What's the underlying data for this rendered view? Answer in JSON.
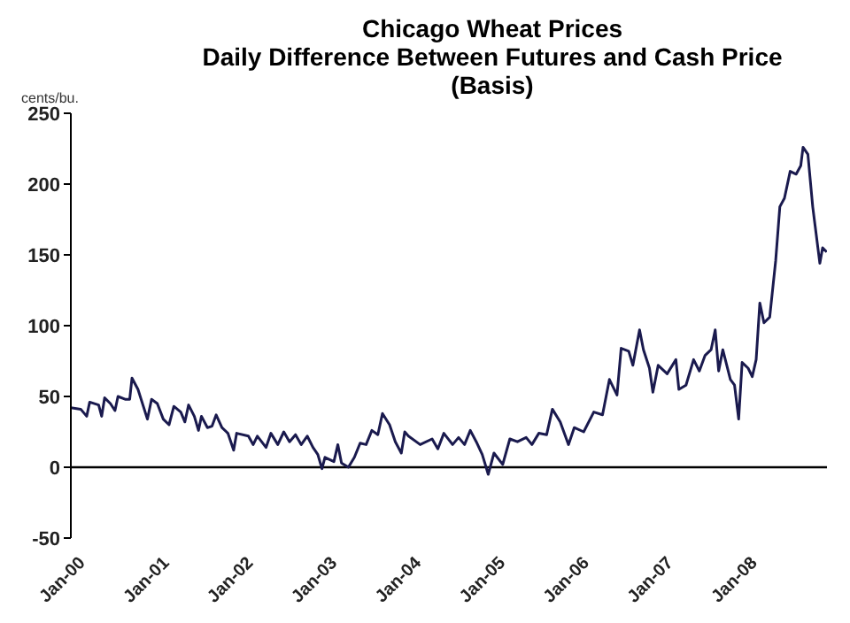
{
  "chart_data": {
    "type": "line",
    "title": "Chicago Wheat Prices",
    "subtitle": "Daily Difference Between Futures and Cash Price (Basis)",
    "ylabel": "cents/bu.",
    "x": [
      "2000-01-01",
      "2000-02-13",
      "2000-03-10",
      "2000-03-23",
      "2000-05-01",
      "2000-05-14",
      "2000-05-27",
      "2000-06-21",
      "2000-07-11",
      "2000-07-24",
      "2000-08-24",
      "2000-09-13",
      "2000-09-23",
      "2000-10-19",
      "2000-11-29",
      "2000-12-17",
      "2001-01-11",
      "2001-02-06",
      "2001-03-03",
      "2001-03-24",
      "2001-04-23",
      "2001-05-11",
      "2001-05-27",
      "2001-06-21",
      "2001-07-09",
      "2001-07-22",
      "2001-08-17",
      "2001-09-06",
      "2001-09-24",
      "2001-10-19",
      "2001-11-14",
      "2001-12-09",
      "2001-12-22",
      "2002-02-11",
      "2002-03-04",
      "2002-03-22",
      "2002-04-29",
      "2002-05-20",
      "2002-06-19",
      "2002-07-15",
      "2002-08-09",
      "2002-09-04",
      "2002-09-29",
      "2002-10-25",
      "2002-11-19",
      "2002-12-10",
      "2002-12-28",
      "2003-01-10",
      "2003-02-18",
      "2003-03-07",
      "2003-03-23",
      "2003-04-22",
      "2003-05-18",
      "2003-06-12",
      "2003-07-08",
      "2003-08-02",
      "2003-08-28",
      "2003-09-17",
      "2003-10-18",
      "2003-11-12",
      "2003-12-08",
      "2003-12-23",
      "2004-01-08",
      "2004-02-28",
      "2004-04-20",
      "2004-05-15",
      "2004-06-10",
      "2004-07-18",
      "2004-08-13",
      "2004-09-08",
      "2004-10-03",
      "2004-10-29",
      "2004-11-24",
      "2004-12-20",
      "2005-01-14",
      "2005-02-21",
      "2005-03-24",
      "2005-04-26",
      "2005-06-03",
      "2005-06-28",
      "2005-07-28",
      "2005-08-31",
      "2005-09-25",
      "2005-10-29",
      "2005-12-04",
      "2005-12-29",
      "2006-02-08",
      "2006-03-24",
      "2006-05-01",
      "2006-05-31",
      "2006-07-03",
      "2006-07-21",
      "2006-08-23",
      "2006-09-10",
      "2006-10-09",
      "2006-10-26",
      "2006-11-21",
      "2006-12-06",
      "2006-12-29",
      "2007-02-06",
      "2007-03-16",
      "2007-03-29",
      "2007-04-29",
      "2007-06-01",
      "2007-06-26",
      "2007-07-21",
      "2007-08-16",
      "2007-09-03",
      "2007-09-18",
      "2007-10-06",
      "2007-11-08",
      "2007-11-26",
      "2007-12-14",
      "2007-12-29",
      "2008-01-24",
      "2008-02-11",
      "2008-02-28",
      "2008-03-15",
      "2008-04-02",
      "2008-04-27",
      "2008-05-23",
      "2008-06-10",
      "2008-06-30",
      "2008-07-25",
      "2008-08-20",
      "2008-09-09",
      "2008-09-19",
      "2008-10-10",
      "2008-10-31",
      "2008-12-01",
      "2008-12-13",
      "2008-12-31"
    ],
    "series": [
      {
        "color": "#1a1a4e",
        "values": [
          42,
          41,
          36,
          46,
          44,
          36,
          49,
          45,
          40,
          50,
          48,
          48,
          63,
          55,
          34,
          48,
          45,
          34,
          30,
          43,
          39,
          32,
          44,
          36,
          26,
          36,
          28,
          29,
          37,
          28,
          24,
          12,
          24,
          22,
          16,
          22,
          14,
          24,
          16,
          25,
          18,
          23,
          16,
          22,
          14,
          9,
          -1,
          7,
          4,
          16,
          3,
          0,
          7,
          17,
          16,
          26,
          23,
          38,
          30,
          18,
          10,
          25,
          22,
          16,
          20,
          13,
          24,
          16,
          21,
          16,
          26,
          18,
          9,
          -5,
          10,
          2,
          20,
          18,
          21,
          16,
          24,
          23,
          41,
          32,
          16,
          28,
          25,
          39,
          37,
          62,
          51,
          84,
          82,
          72,
          97,
          83,
          70,
          53,
          72,
          66,
          76,
          55,
          58,
          76,
          68,
          79,
          83,
          97,
          68,
          83,
          62,
          58,
          34,
          74,
          70,
          64,
          76,
          116,
          102,
          106,
          146,
          184,
          190,
          209,
          207,
          213,
          226,
          221,
          184,
          144,
          155,
          152
        ]
      }
    ],
    "xlim": [
      "2000-01-01",
      "2009-01-01"
    ],
    "xticks": [
      {
        "value": "2000-01-01",
        "label": "Jan-00"
      },
      {
        "value": "2001-01-01",
        "label": "Jan-01"
      },
      {
        "value": "2002-01-01",
        "label": "Jan-02"
      },
      {
        "value": "2003-01-01",
        "label": "Jan-03"
      },
      {
        "value": "2004-01-01",
        "label": "Jan-04"
      },
      {
        "value": "2005-01-01",
        "label": "Jan-05"
      },
      {
        "value": "2006-01-01",
        "label": "Jan-06"
      },
      {
        "value": "2007-01-01",
        "label": "Jan-07"
      },
      {
        "value": "2008-01-01",
        "label": "Jan-08"
      }
    ],
    "ylim": [
      -50,
      250
    ],
    "yticks": [
      -50,
      0,
      50,
      100,
      150,
      200,
      250
    ],
    "legend": false,
    "marker": "none",
    "line_style": "solid"
  }
}
